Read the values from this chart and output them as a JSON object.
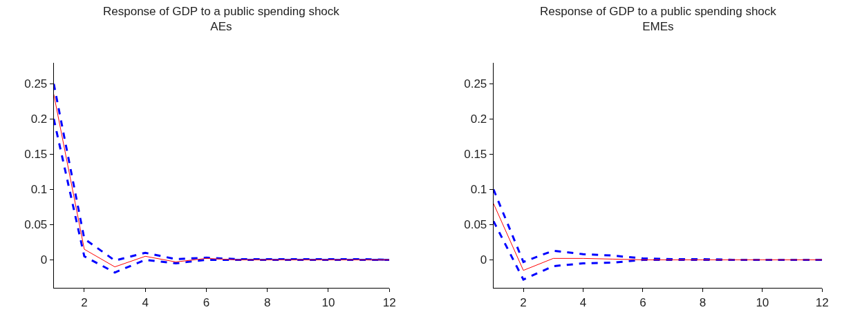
{
  "chart_data": [
    {
      "type": "line",
      "title": "Response of GDP to a public spending shock\nAEs",
      "x": [
        1,
        2,
        3,
        4,
        5,
        6,
        7,
        8,
        9,
        10,
        11,
        12
      ],
      "xlim": [
        1,
        12
      ],
      "xticks": [
        2,
        4,
        6,
        8,
        10,
        12
      ],
      "ylim": [
        -0.04,
        0.28
      ],
      "yticks": [
        0,
        0.05,
        0.1,
        0.15,
        0.2,
        0.25
      ],
      "series": [
        {
          "color": "#0000ff",
          "line_style": "dashed",
          "values": [
            0.25,
            0.03,
            -0.001,
            0.01,
            0.001,
            0.003,
            0.001,
            0.001,
            0.001,
            0.001,
            0.001,
            0
          ]
        },
        {
          "color": "#0000ff",
          "line_style": "dashed",
          "values": [
            0.2,
            0.005,
            -0.018,
            0.0,
            -0.005,
            0.0,
            0,
            0,
            0,
            0,
            0,
            0
          ]
        },
        {
          "color": "#ff0000",
          "line_style": "solid",
          "values": [
            0.235,
            0.015,
            -0.01,
            0.005,
            -0.003,
            0.002,
            0,
            0,
            0,
            0,
            0,
            0
          ]
        }
      ]
    },
    {
      "type": "line",
      "title": "Response of GDP to a public spending shock\nEMEs",
      "x": [
        1,
        2,
        3,
        4,
        5,
        6,
        7,
        8,
        9,
        10,
        11,
        12
      ],
      "xlim": [
        1,
        12
      ],
      "xticks": [
        2,
        4,
        6,
        8,
        10,
        12
      ],
      "ylim": [
        -0.04,
        0.28
      ],
      "yticks": [
        0,
        0.05,
        0.1,
        0.15,
        0.2,
        0.25
      ],
      "series": [
        {
          "color": "#0000ff",
          "line_style": "dashed",
          "values": [
            0.1,
            -0.003,
            0.013,
            0.008,
            0.006,
            0.002,
            0.001,
            0.001,
            0,
            0,
            0,
            0
          ]
        },
        {
          "color": "#0000ff",
          "line_style": "dashed",
          "values": [
            0.055,
            -0.028,
            -0.009,
            -0.005,
            -0.004,
            0.0,
            0,
            0,
            0,
            0,
            0,
            0
          ]
        },
        {
          "color": "#ff0000",
          "line_style": "solid",
          "values": [
            0.08,
            -0.015,
            0.002,
            0.002,
            0.001,
            0,
            0,
            0,
            0,
            0,
            0,
            0
          ]
        }
      ]
    }
  ]
}
